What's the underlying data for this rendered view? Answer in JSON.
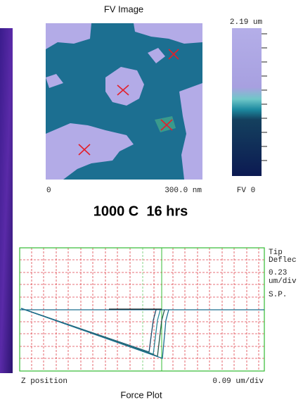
{
  "image_panel": {
    "title": "FV Image",
    "scale_max": "2.19 um",
    "scale_min": "FV 0",
    "x_start": "0",
    "x_end": "300.0 nm"
  },
  "caption": "1000 C  16 hrs",
  "force_plot": {
    "side_labels": [
      "Tip",
      "Deflec",
      "0.23",
      "um/div",
      "S.P."
    ],
    "x_label": "Z position",
    "x_scale": "0.09 um/div",
    "title": "Force Plot"
  }
}
